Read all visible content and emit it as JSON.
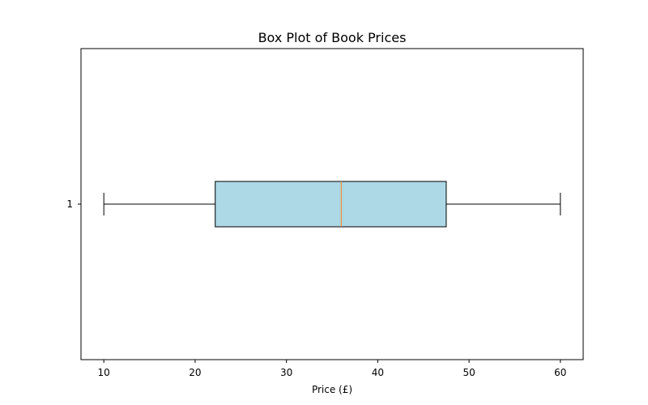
{
  "chart_data": {
    "type": "box",
    "orientation": "horizontal",
    "title": "Box Plot of Book Prices",
    "xlabel": "Price (£)",
    "ylabel": "",
    "xlim": [
      7.5,
      62.5
    ],
    "x_ticks": [
      10,
      20,
      30,
      40,
      50,
      60
    ],
    "categories": [
      "1"
    ],
    "series": [
      {
        "category": "1",
        "whisker_low": 10,
        "q1": 22.2,
        "median": 36,
        "q3": 47.5,
        "whisker_high": 60
      }
    ],
    "grid": false,
    "colors": {
      "box_fill": "#add8e6",
      "box_edge": "#000000",
      "median": "#ff7f0e",
      "whisker": "#000000",
      "axes": "#000000"
    }
  }
}
